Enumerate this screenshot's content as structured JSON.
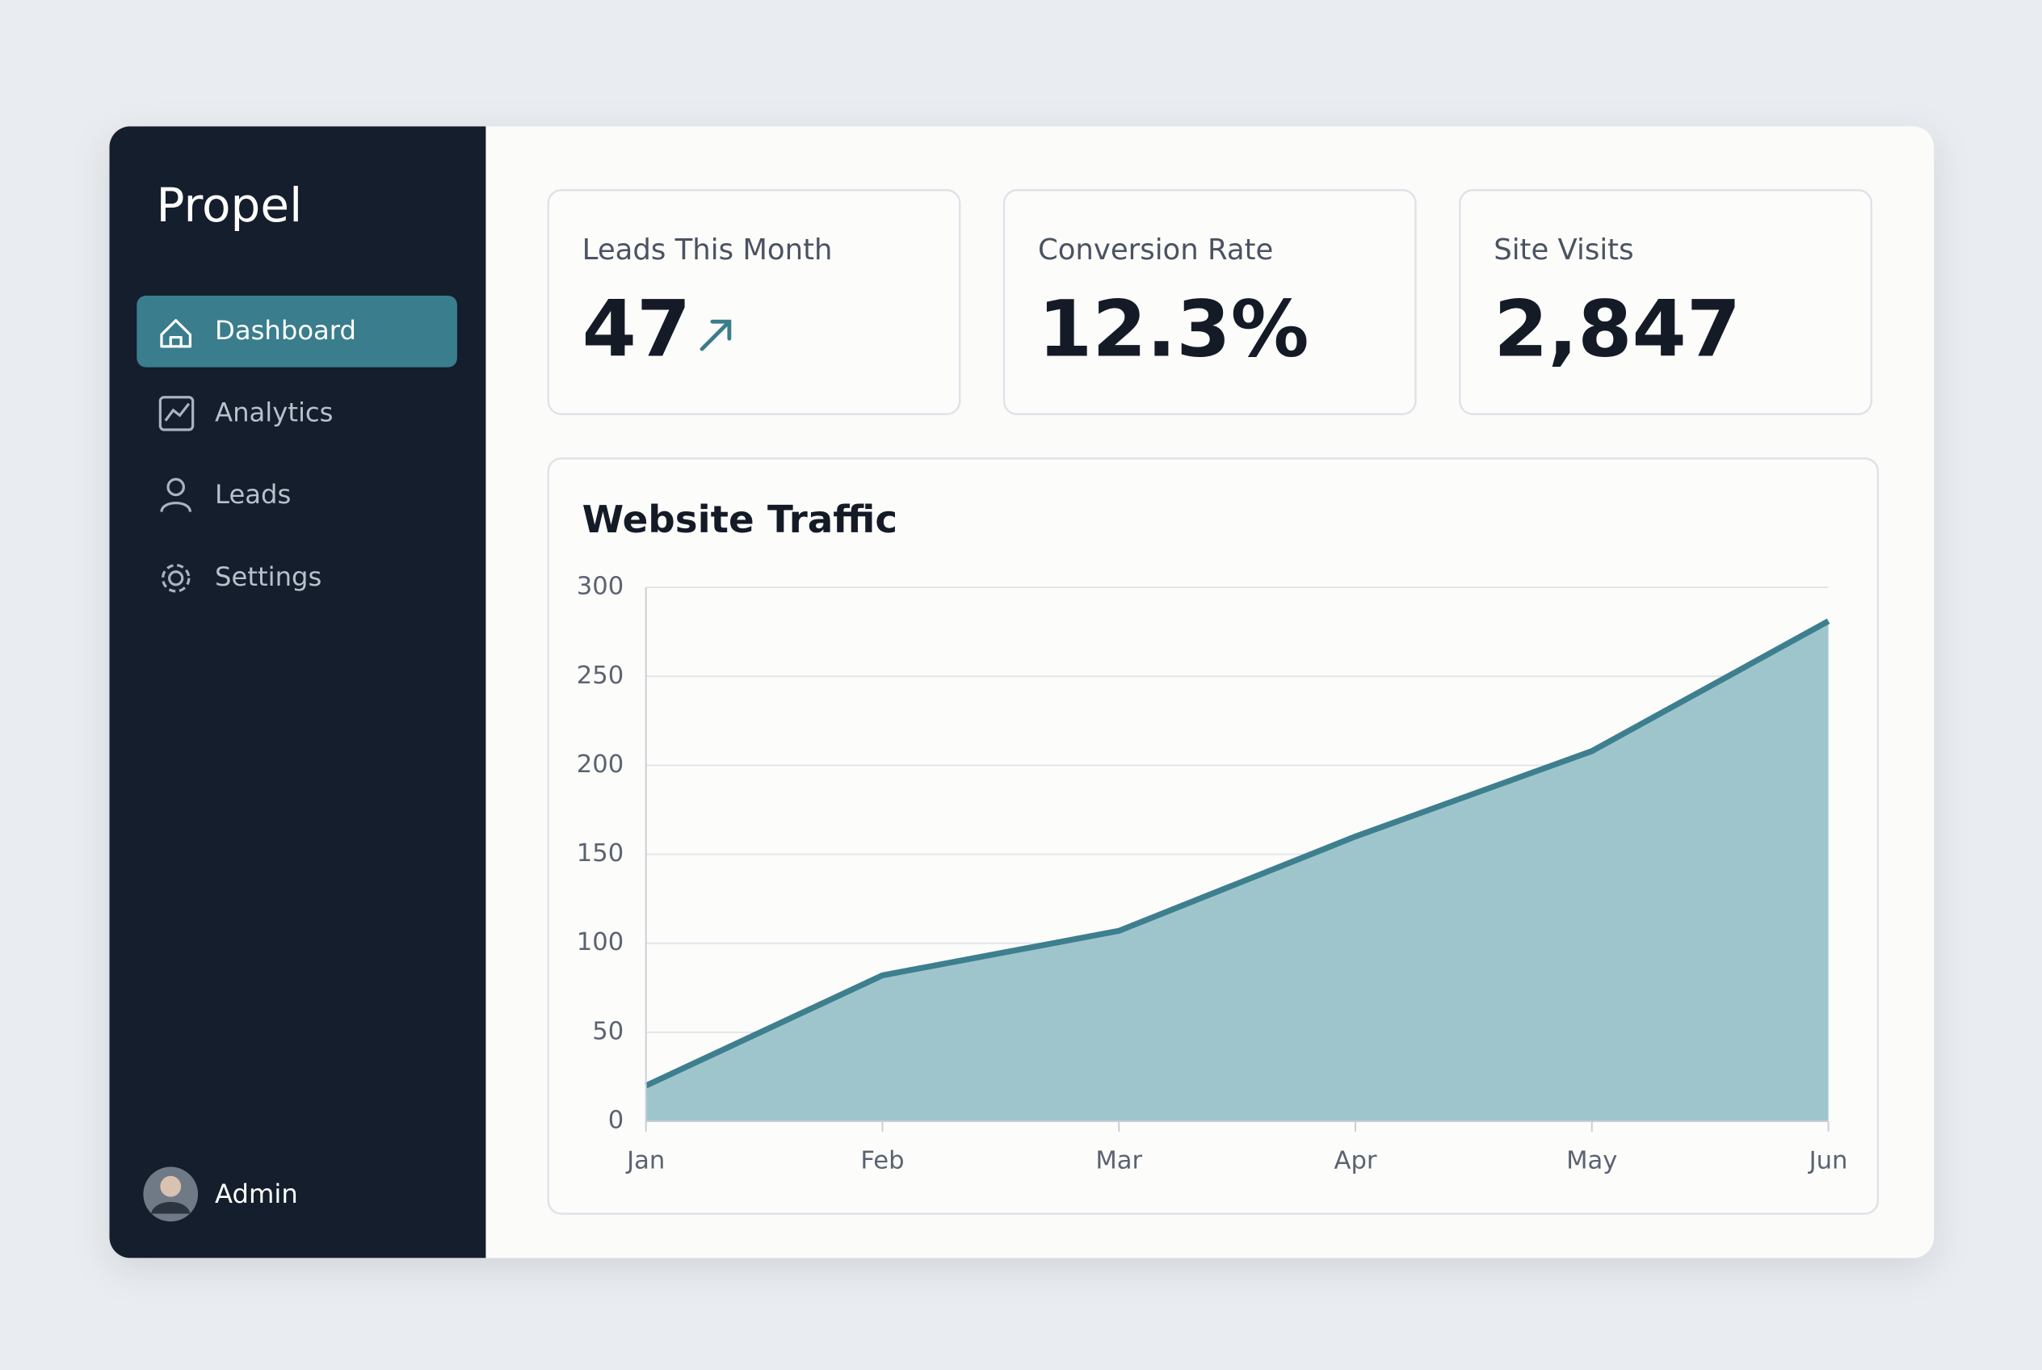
{
  "sidebar": {
    "brand": "Propel",
    "nav": [
      "Dashboard",
      "Analytics",
      "Leads",
      "Settings"
    ],
    "user": "Admin"
  },
  "kpis": [
    {
      "label": "Leads This Month",
      "value": "47"
    },
    {
      "label": "Conversion Rate",
      "value": "12.3%"
    },
    {
      "label": "Site Visits",
      "value": "2,847"
    }
  ],
  "chart_data": {
    "type": "area",
    "title": "Website Traffic",
    "categories": [
      "Jan",
      "Feb",
      "Mar",
      "Apr",
      "May",
      "Jun"
    ],
    "series": [
      {
        "name": "Website Traffic",
        "color": "#3d7f8e",
        "fill": "#9fc5cc",
        "values": [
          20,
          82,
          107,
          160,
          208,
          281
        ]
      }
    ],
    "ylim": [
      0,
      300
    ],
    "yticks": [
      0,
      50,
      100,
      150,
      200,
      250,
      300
    ],
    "grid": true
  }
}
